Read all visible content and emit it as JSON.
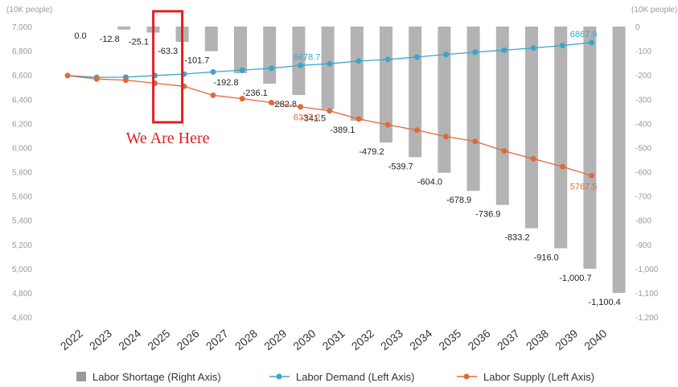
{
  "chart_data": {
    "type": "bar",
    "categories": [
      "2022",
      "2023",
      "2024",
      "2025",
      "2026",
      "2027",
      "2028",
      "2029",
      "2030",
      "2031",
      "2032",
      "2033",
      "2034",
      "2035",
      "2036",
      "2037",
      "2038",
      "2039",
      "2040"
    ],
    "left_axis_unit": "(10K people)",
    "right_axis_unit": "(10K people)",
    "left_ylim": [
      4600,
      7000
    ],
    "right_ylim": [
      -1200,
      0
    ],
    "left_ticks": [
      "7,000",
      "6,800",
      "6,600",
      "6,400",
      "6,200",
      "6,000",
      "5,800",
      "5,600",
      "5,400",
      "5,200",
      "5,000",
      "4,800",
      "4,600"
    ],
    "right_ticks": [
      "0",
      "-100",
      "-200",
      "-300",
      "-400",
      "-500",
      "-600",
      "-700",
      "-800",
      "-900",
      "-1,000",
      "-1,100",
      "-1,200"
    ],
    "series": [
      {
        "name": "Labor Shortage (Right Axis)",
        "kind": "bar",
        "axis": "right",
        "color": "#b3b3b3",
        "values": [
          0.0,
          -12.8,
          -25.1,
          -63.3,
          -101.7,
          -192.8,
          -236.1,
          -282.8,
          -341.5,
          -389.1,
          -479.2,
          -539.7,
          -604.0,
          -678.9,
          -736.9,
          -833.2,
          -916.0,
          -1000.7,
          -1100.4
        ],
        "labels": [
          "0.0",
          "-12.8",
          "-25.1",
          "-63.3",
          "-101.7",
          "-192.8",
          "-236.1",
          "-282.8",
          "-341.5",
          "-389.1",
          "-479.2",
          "-539.7",
          "-604.0",
          "-678.9",
          "-736.9",
          "-833.2",
          "-916.0",
          "-1,000.7",
          "-1,100.4"
        ]
      },
      {
        "name": "Labor Demand (Left Axis)",
        "kind": "line",
        "axis": "left",
        "color": "#3aa5c9",
        "values": [
          6595,
          6580,
          6582,
          6595,
          6608,
          6625,
          6640,
          6655,
          6679,
          6693,
          6715,
          6728,
          6748,
          6770,
          6788,
          6805,
          6823,
          6843,
          6868
        ],
        "labels": {
          "8": "6678.7",
          "18": "6867.9"
        }
      },
      {
        "name": "Labor Supply (Left Axis)",
        "kind": "line",
        "axis": "left",
        "color": "#e06a3a",
        "values": [
          6595,
          6567,
          6557,
          6532,
          6506,
          6432,
          6404,
          6372,
          6337,
          6304,
          6236,
          6188,
          6144,
          6091,
          6051,
          5972,
          5907,
          5842,
          5767.5
        ],
        "labels": {
          "8": "6337.2",
          "18": "5767.5"
        }
      }
    ],
    "annotation": {
      "text": "We Are Here",
      "category": "2025",
      "color": "#e02020"
    },
    "grid": false,
    "legend_position": "bottom"
  }
}
